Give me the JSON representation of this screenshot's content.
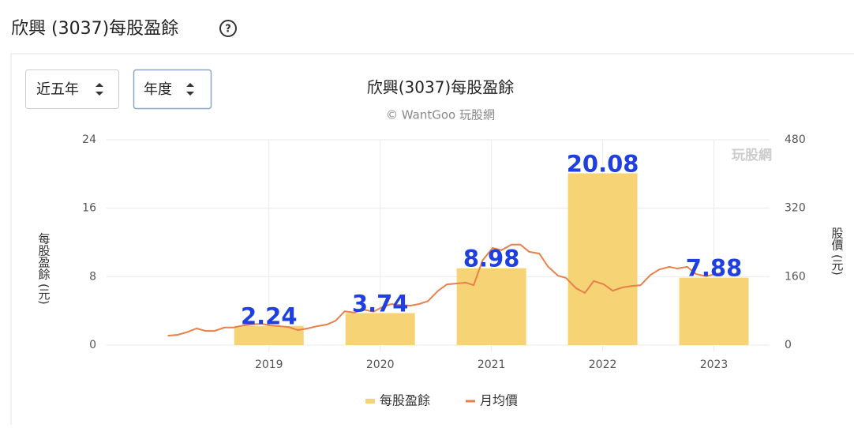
{
  "header": {
    "title": "欣興 (3037)每股盈餘",
    "filters": [
      "近五年",
      "年度"
    ]
  },
  "chart_data": {
    "type": "bar",
    "title": "欣興(3037)每股盈餘",
    "subtitle": "© WantGoo 玩股網",
    "watermark": "玩股網",
    "y_label": "每股盈餘 (元)",
    "y2_label": "股價 (元)",
    "xlim": [
      2017.54,
      2023.5
    ],
    "xticks": [
      2019,
      2020,
      2021,
      2022,
      2023
    ],
    "ylim": [
      0,
      24
    ],
    "yticks": [
      0,
      8,
      16,
      24
    ],
    "y2lim": [
      0,
      480
    ],
    "y2ticks": [
      0,
      160,
      320,
      480
    ],
    "grid": true,
    "series": [
      {
        "name": "每股盈餘",
        "type": "bar",
        "color": "#f6d374",
        "label_color": "#1f3fe0",
        "x": [
          2019,
          2020,
          2021,
          2022,
          2023
        ],
        "values": [
          2.24,
          3.74,
          8.98,
          20.08,
          7.88
        ]
      },
      {
        "name": "月均價",
        "type": "line",
        "axis": "y2",
        "color": "#e8804a",
        "x": [
          2018.09,
          2018.18,
          2018.26,
          2018.35,
          2018.43,
          2018.51,
          2018.6,
          2018.68,
          2018.77,
          2018.84,
          2018.93,
          2019.01,
          2019.1,
          2019.18,
          2019.26,
          2019.35,
          2019.43,
          2019.52,
          2019.6,
          2019.68,
          2019.77,
          2019.85,
          2019.94,
          2020.02,
          2020.1,
          2020.18,
          2020.27,
          2020.35,
          2020.43,
          2020.52,
          2020.6,
          2020.69,
          2020.77,
          2020.84,
          2020.92,
          2021.01,
          2021.09,
          2021.18,
          2021.26,
          2021.34,
          2021.43,
          2021.51,
          2021.6,
          2021.67,
          2021.76,
          2021.84,
          2021.92,
          2022.01,
          2022.09,
          2022.18,
          2022.26,
          2022.34,
          2022.43,
          2022.51,
          2022.6,
          2022.67,
          2022.76,
          2022.84,
          2022.93,
          2023.01,
          2023.09
        ],
        "values": [
          22,
          24,
          30,
          39,
          33,
          33,
          41,
          41,
          46,
          48,
          50,
          46,
          44,
          42,
          35,
          39,
          44,
          48,
          57,
          79,
          76,
          83,
          78,
          89,
          96,
          94,
          92,
          96,
          103,
          127,
          142,
          144,
          146,
          140,
          198,
          227,
          222,
          235,
          235,
          218,
          214,
          183,
          162,
          157,
          133,
          122,
          150,
          142,
          127,
          135,
          138,
          140,
          164,
          177,
          183,
          179,
          183,
          166,
          161,
          166,
          170
        ]
      }
    ]
  }
}
